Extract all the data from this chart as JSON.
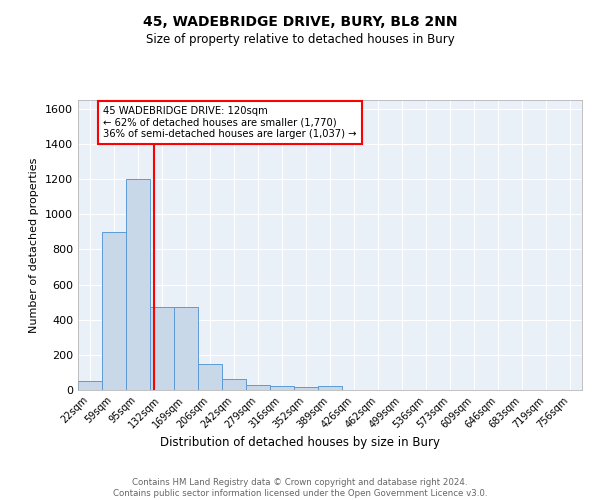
{
  "title": "45, WADEBRIDGE DRIVE, BURY, BL8 2NN",
  "subtitle": "Size of property relative to detached houses in Bury",
  "xlabel": "Distribution of detached houses by size in Bury",
  "ylabel": "Number of detached properties",
  "bar_color": "#c8d8e8",
  "bar_edge_color": "#5b9bd5",
  "bins": [
    "22sqm",
    "59sqm",
    "95sqm",
    "132sqm",
    "169sqm",
    "206sqm",
    "242sqm",
    "279sqm",
    "316sqm",
    "352sqm",
    "389sqm",
    "426sqm",
    "462sqm",
    "499sqm",
    "536sqm",
    "573sqm",
    "609sqm",
    "646sqm",
    "683sqm",
    "719sqm",
    "756sqm"
  ],
  "values": [
    50,
    900,
    1200,
    470,
    470,
    150,
    60,
    30,
    20,
    15,
    20,
    0,
    0,
    0,
    0,
    0,
    0,
    0,
    0,
    0,
    0
  ],
  "red_line_x": 2.68,
  "annotation_text": "45 WADEBRIDGE DRIVE: 120sqm\n← 62% of detached houses are smaller (1,770)\n36% of semi-detached houses are larger (1,037) →",
  "annotation_box_color": "white",
  "annotation_box_edge_color": "red",
  "ylim": [
    0,
    1650
  ],
  "yticks": [
    0,
    200,
    400,
    600,
    800,
    1000,
    1200,
    1400,
    1600
  ],
  "footnote": "Contains HM Land Registry data © Crown copyright and database right 2024.\nContains public sector information licensed under the Open Government Licence v3.0.",
  "bg_color": "#eaf0f8",
  "grid_color": "white"
}
